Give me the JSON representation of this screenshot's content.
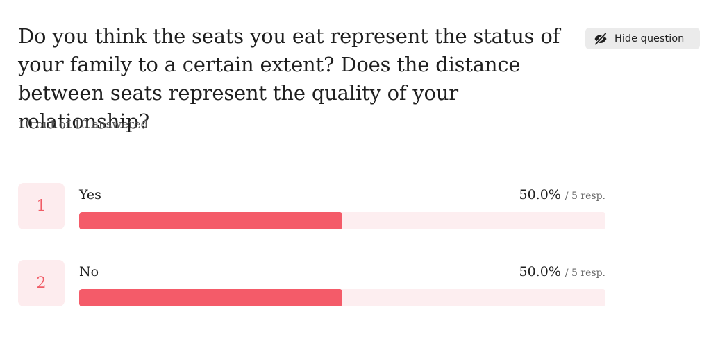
{
  "question": {
    "title": "Do you think the seats you eat represent the status of your family to a certain extent? Does the distance between seats represent the quality of your relationship?",
    "answered_count": "10",
    "answered_suffix": "out of 10 answered"
  },
  "hide_button": {
    "label": "Hide question",
    "icon": "eye-slash-icon"
  },
  "colors": {
    "accent": "#f45b69",
    "track": "#fdeef0",
    "badge_bg": "#fdecee",
    "badge_text": "#f05c66"
  },
  "choices": [
    {
      "number": "1",
      "label": "Yes",
      "percent_text": "50.0%",
      "responses_text": "/ 5 resp.",
      "fraction": 0.5
    },
    {
      "number": "2",
      "label": "No",
      "percent_text": "50.0%",
      "responses_text": "/ 5 resp.",
      "fraction": 0.5
    }
  ]
}
